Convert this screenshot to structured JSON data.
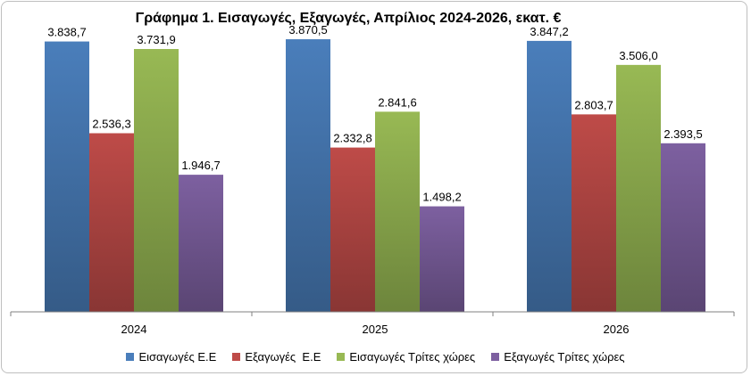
{
  "chart_data": {
    "type": "bar",
    "title": "Γράφημα 1. Εισαγωγές, Εξαγωγές, Απρίλιος 2024-2026, εκατ. €",
    "categories": [
      "2024",
      "2025",
      "2026"
    ],
    "series": [
      {
        "name": "Εισαγωγές Ε.Ε",
        "values": [
          3838.7,
          3870.5,
          3847.2
        ],
        "labels": [
          "3.838,7",
          "3.870,5",
          "3.847,2"
        ],
        "color": "#4a7ebb"
      },
      {
        "name": "Εξαγωγές  Ε.Ε",
        "values": [
          2536.3,
          2332.8,
          2803.7
        ],
        "labels": [
          "2.536,3",
          "2.332,8",
          "2.803,7"
        ],
        "color": "#be4b48"
      },
      {
        "name": "Εισαγωγές Τρίτες χώρες",
        "values": [
          3731.9,
          2841.6,
          3506.0
        ],
        "labels": [
          "3.731,9",
          "2.841,6",
          "3.506,0"
        ],
        "color": "#98b954"
      },
      {
        "name": "Εξαγωγές Τρίτες χώρες",
        "values": [
          1946.7,
          1498.2,
          2393.5
        ],
        "labels": [
          "1.946,7",
          "1.498,2",
          "2.393,5"
        ],
        "color": "#7d60a0"
      }
    ],
    "ylim": [
      0,
      4200
    ],
    "legend_position": "bottom",
    "grid": false
  }
}
